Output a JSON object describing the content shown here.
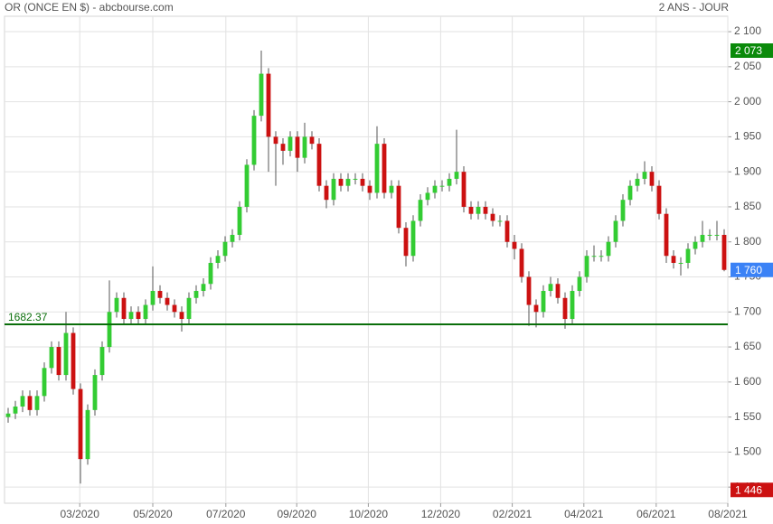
{
  "chart_data": {
    "type": "candlestick",
    "title": "OR (ONCE EN $) - abcbourse.com",
    "period": "2 ANS - JOUR",
    "up_color": "#33cc33",
    "down_color": "#cc1111",
    "wick_color": "#555555",
    "grid": true,
    "ylim": [
      1427,
      2122
    ],
    "yticks": [
      {
        "value": 1450,
        "label": "1 450"
      },
      {
        "value": 1500,
        "label": "1 500"
      },
      {
        "value": 1550,
        "label": "1 550"
      },
      {
        "value": 1600,
        "label": "1 600"
      },
      {
        "value": 1650,
        "label": "1 650"
      },
      {
        "value": 1700,
        "label": "1 700"
      },
      {
        "value": 1750,
        "label": "1 750"
      },
      {
        "value": 1800,
        "label": "1 800"
      },
      {
        "value": 1850,
        "label": "1 850"
      },
      {
        "value": 1900,
        "label": "1 900"
      },
      {
        "value": 1950,
        "label": "1 950"
      },
      {
        "value": 2000,
        "label": "2 000"
      },
      {
        "value": 2050,
        "label": "2 050"
      },
      {
        "value": 2100,
        "label": "2 100"
      }
    ],
    "xlim": [
      0,
      100
    ],
    "xticks": [
      {
        "value": 10.4,
        "label": "03/2020"
      },
      {
        "value": 20.5,
        "label": "05/2020"
      },
      {
        "value": 30.6,
        "label": "07/2020"
      },
      {
        "value": 40.4,
        "label": "09/2020"
      },
      {
        "value": 50.3,
        "label": "10/2020"
      },
      {
        "value": 60.3,
        "label": "12/2020"
      },
      {
        "value": 70.2,
        "label": "02/2021"
      },
      {
        "value": 80.1,
        "label": "04/2021"
      },
      {
        "value": 90.1,
        "label": "06/2021"
      },
      {
        "value": 100,
        "label": "08/2021"
      }
    ],
    "open": [
      1550,
      1555,
      1565,
      1580,
      1560,
      1580,
      1620,
      1650,
      1610,
      1670,
      1590,
      1490,
      1560,
      1610,
      1650,
      1700,
      1720,
      1690,
      1700,
      1690,
      1710,
      1730,
      1720,
      1710,
      1700,
      1690,
      1720,
      1730,
      1740,
      1770,
      1780,
      1800,
      1810,
      1850,
      1910,
      1980,
      2040,
      1950,
      1940,
      1930,
      1950,
      1920,
      1950,
      1940,
      1880,
      1860,
      1890,
      1880,
      1890,
      1890,
      1880,
      1870,
      1940,
      1870,
      1880,
      1820,
      1780,
      1830,
      1860,
      1870,
      1880,
      1880,
      1890,
      1900,
      1850,
      1840,
      1850,
      1840,
      1830,
      1830,
      1800,
      1790,
      1750,
      1710,
      1700,
      1730,
      1740,
      1720,
      1690,
      1730,
      1750,
      1780,
      1780,
      1780,
      1800,
      1830,
      1860,
      1880,
      1890,
      1900,
      1880,
      1840,
      1780,
      1770,
      1770,
      1790,
      1800,
      1810,
      1810,
      1810
    ],
    "high": [
      1563,
      1573,
      1588,
      1588,
      1588,
      1628,
      1658,
      1658,
      1700,
      1678,
      1598,
      1568,
      1618,
      1658,
      1745,
      1728,
      1728,
      1708,
      1708,
      1718,
      1765,
      1738,
      1728,
      1718,
      1708,
      1728,
      1738,
      1748,
      1778,
      1788,
      1808,
      1818,
      1858,
      1918,
      1988,
      2073,
      2048,
      1958,
      1948,
      1958,
      1958,
      1970,
      1958,
      1948,
      1888,
      1898,
      1898,
      1898,
      1898,
      1898,
      1888,
      1965,
      1948,
      1888,
      1888,
      1828,
      1838,
      1868,
      1878,
      1888,
      1888,
      1898,
      1960,
      1908,
      1858,
      1858,
      1858,
      1848,
      1838,
      1838,
      1810,
      1798,
      1758,
      1718,
      1738,
      1750,
      1748,
      1728,
      1738,
      1758,
      1788,
      1795,
      1788,
      1808,
      1838,
      1868,
      1888,
      1898,
      1915,
      1908,
      1888,
      1848,
      1788,
      1778,
      1798,
      1808,
      1830,
      1818,
      1830,
      1818
    ],
    "low": [
      1542,
      1547,
      1557,
      1552,
      1552,
      1572,
      1612,
      1602,
      1602,
      1582,
      1455,
      1482,
      1552,
      1602,
      1642,
      1692,
      1682,
      1682,
      1682,
      1682,
      1702,
      1712,
      1702,
      1692,
      1672,
      1682,
      1712,
      1722,
      1732,
      1762,
      1772,
      1792,
      1802,
      1842,
      1902,
      1972,
      1900,
      1880,
      1910,
      1922,
      1900,
      1912,
      1932,
      1872,
      1848,
      1852,
      1872,
      1872,
      1882,
      1872,
      1860,
      1862,
      1862,
      1862,
      1812,
      1765,
      1772,
      1822,
      1852,
      1862,
      1872,
      1872,
      1882,
      1842,
      1832,
      1832,
      1832,
      1822,
      1822,
      1792,
      1775,
      1742,
      1680,
      1678,
      1692,
      1722,
      1712,
      1676,
      1682,
      1722,
      1742,
      1772,
      1772,
      1772,
      1792,
      1822,
      1852,
      1872,
      1882,
      1872,
      1832,
      1770,
      1762,
      1752,
      1762,
      1782,
      1792,
      1802,
      1802,
      1758
    ],
    "close": [
      1555,
      1565,
      1580,
      1560,
      1580,
      1620,
      1650,
      1610,
      1670,
      1590,
      1490,
      1560,
      1610,
      1650,
      1700,
      1720,
      1690,
      1700,
      1690,
      1710,
      1730,
      1720,
      1710,
      1700,
      1690,
      1720,
      1730,
      1740,
      1770,
      1780,
      1800,
      1810,
      1850,
      1910,
      1980,
      2040,
      1950,
      1940,
      1930,
      1950,
      1920,
      1950,
      1940,
      1880,
      1860,
      1890,
      1880,
      1890,
      1890,
      1880,
      1870,
      1940,
      1870,
      1880,
      1820,
      1780,
      1830,
      1860,
      1870,
      1880,
      1880,
      1890,
      1900,
      1850,
      1840,
      1850,
      1840,
      1830,
      1830,
      1800,
      1790,
      1750,
      1710,
      1700,
      1730,
      1740,
      1720,
      1690,
      1730,
      1750,
      1780,
      1780,
      1780,
      1800,
      1830,
      1860,
      1880,
      1890,
      1900,
      1880,
      1840,
      1780,
      1770,
      1770,
      1790,
      1800,
      1810,
      1810,
      1810,
      1760
    ],
    "reference_line": {
      "value": 1682.37,
      "color": "#0a6e0a"
    },
    "price_tags": [
      {
        "value": 2073,
        "label": "2 073",
        "color": "#0a8a0a"
      },
      {
        "value": 1760,
        "label": "1 760",
        "color": "#3b82f6"
      },
      {
        "value": 1446,
        "label": "1 446",
        "color": "#cc1111"
      }
    ]
  }
}
